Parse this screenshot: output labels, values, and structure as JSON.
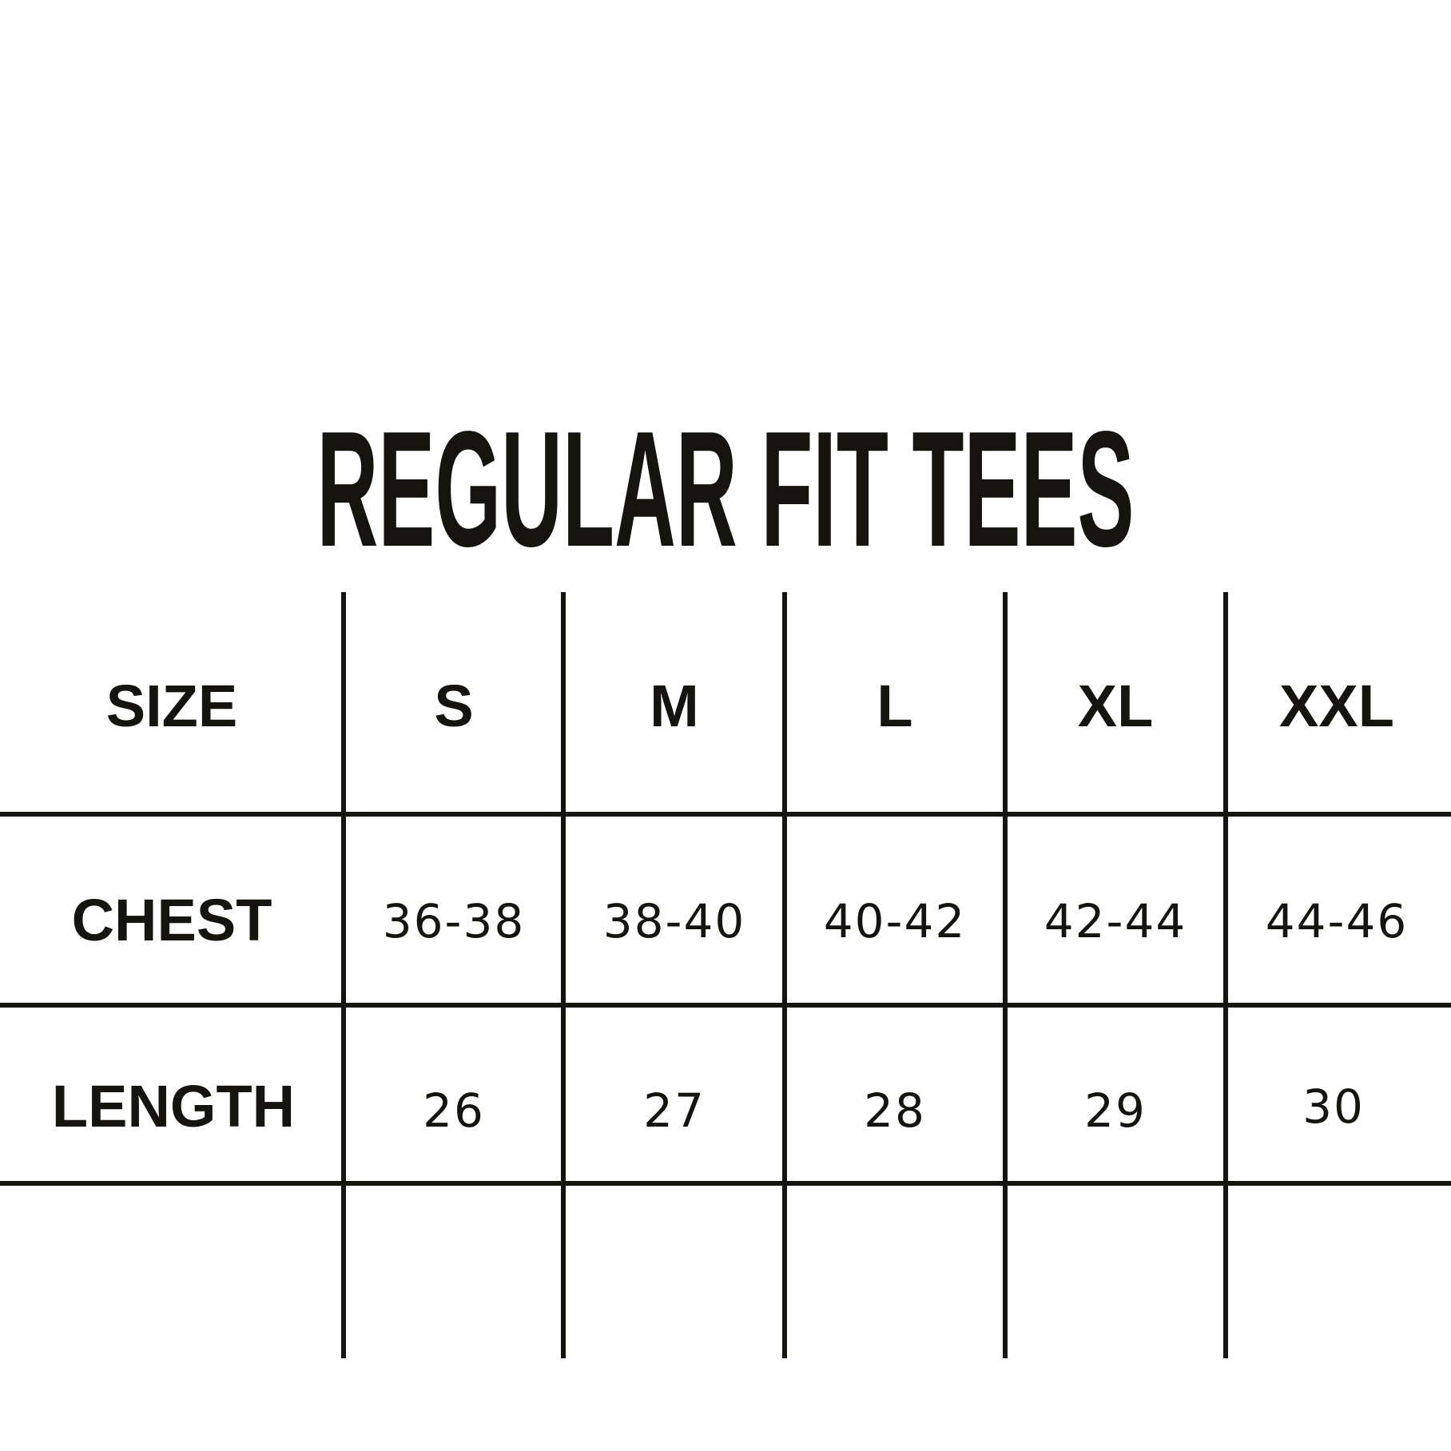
{
  "title": "REGULAR FIT TEES",
  "table": {
    "header": {
      "label": "SIZE",
      "cells": [
        "S",
        "M",
        "L",
        "XL",
        "XXL"
      ]
    },
    "rows": [
      {
        "label": "CHEST",
        "cells": [
          "36-38",
          "38-40",
          "40-42",
          "42-44",
          "44-46"
        ]
      },
      {
        "label": "LENGTH",
        "cells": [
          "26",
          "27",
          "28",
          "29",
          "30"
        ]
      }
    ]
  },
  "colors": {
    "ink": "#16140f",
    "background": "#ffffff"
  }
}
